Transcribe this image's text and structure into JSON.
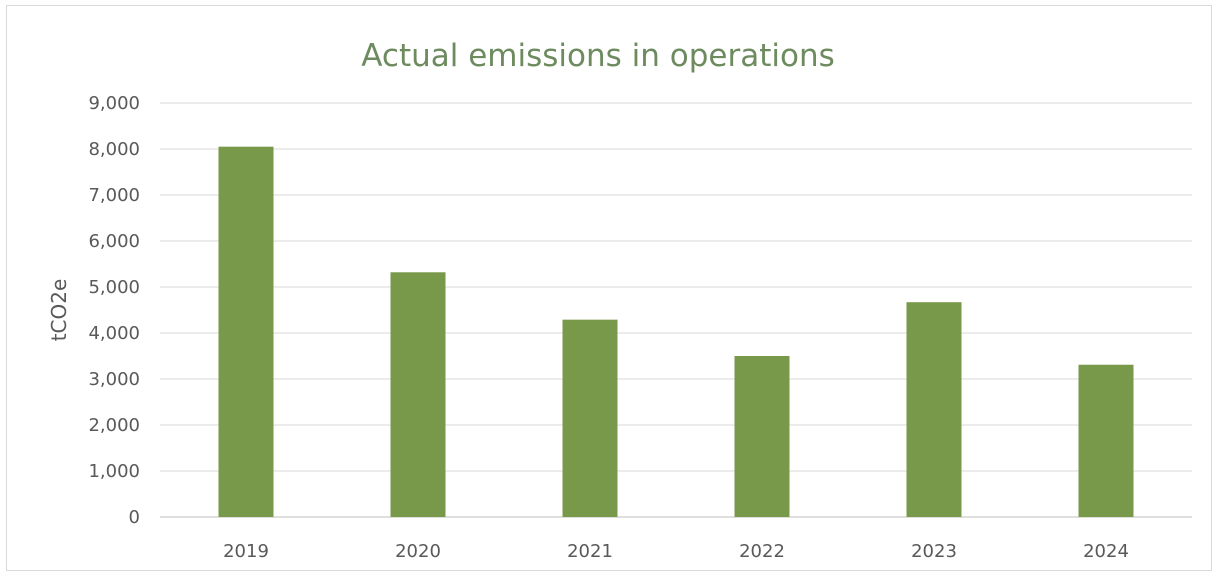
{
  "chart_data": {
    "type": "bar",
    "title": "Actual emissions in operations",
    "xlabel": "",
    "ylabel": "tCO2e",
    "categories": [
      "2019",
      "2020",
      "2021",
      "2022",
      "2023",
      "2024"
    ],
    "values": [
      8050,
      5320,
      4290,
      3500,
      4670,
      3310
    ],
    "ylim": [
      0,
      9000
    ],
    "yticks": [
      0,
      1000,
      2000,
      3000,
      4000,
      5000,
      6000,
      7000,
      8000,
      9000
    ],
    "ytick_labels": [
      "0",
      "1,000",
      "2,000",
      "3,000",
      "4,000",
      "5,000",
      "6,000",
      "7,000",
      "8,000",
      "9,000"
    ],
    "grid": true,
    "legend": "none",
    "bar_color": "#78994a"
  }
}
